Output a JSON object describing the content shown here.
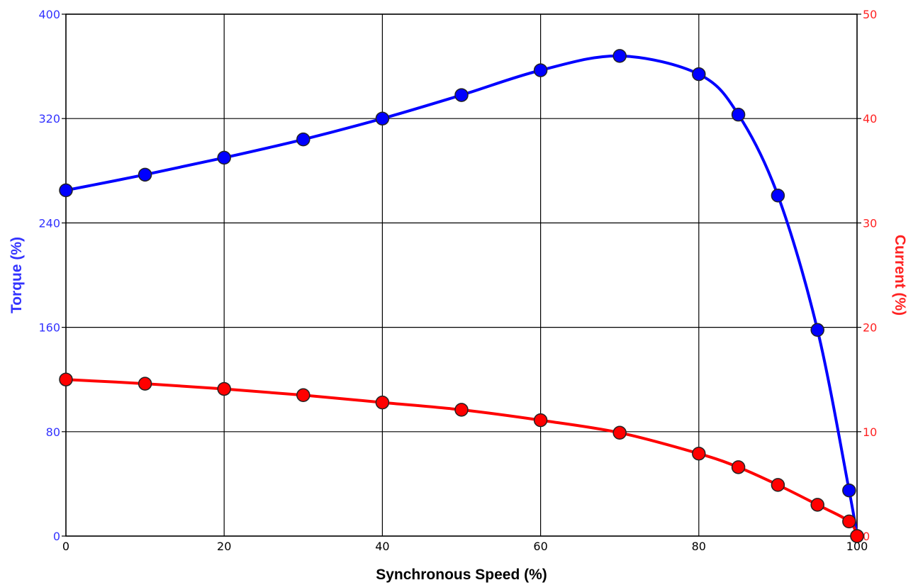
{
  "chart_data": {
    "type": "line",
    "title": "",
    "xlabel": "Synchronous Speed (%)",
    "ylabel": "Torque (%)",
    "y2label": "Current (%)",
    "xlim": [
      0,
      100
    ],
    "ylim": [
      0,
      400
    ],
    "y2lim": [
      0,
      50
    ],
    "xticks": [
      "0",
      "20",
      "40",
      "60",
      "80",
      "100"
    ],
    "yticks": [
      "0",
      "80",
      "160",
      "240",
      "320",
      "400"
    ],
    "y2ticks": [
      "0",
      "10",
      "20",
      "30",
      "40",
      "50"
    ],
    "grid": true,
    "colors": {
      "torque": "#0000ff",
      "current": "#ff0000",
      "left_axis_text": "#3333ff",
      "right_axis_text": "#ff2222"
    },
    "series": [
      {
        "axis": "left",
        "color": "#0000ff",
        "x": [
          0,
          10,
          20,
          30,
          40,
          50,
          60,
          70,
          80,
          85,
          90,
          95,
          99,
          100
        ],
        "y": [
          265,
          277,
          290,
          304,
          320,
          338,
          357,
          368,
          354,
          323,
          261,
          158,
          35,
          0
        ]
      },
      {
        "axis": "right",
        "color": "#ff0000",
        "x": [
          0,
          10,
          20,
          30,
          40,
          50,
          60,
          70,
          80,
          85,
          90,
          95,
          99,
          100
        ],
        "y": [
          15.0,
          14.6,
          14.1,
          13.5,
          12.8,
          12.1,
          11.1,
          9.9,
          7.9,
          6.6,
          4.9,
          3.0,
          1.4,
          0
        ]
      }
    ]
  }
}
